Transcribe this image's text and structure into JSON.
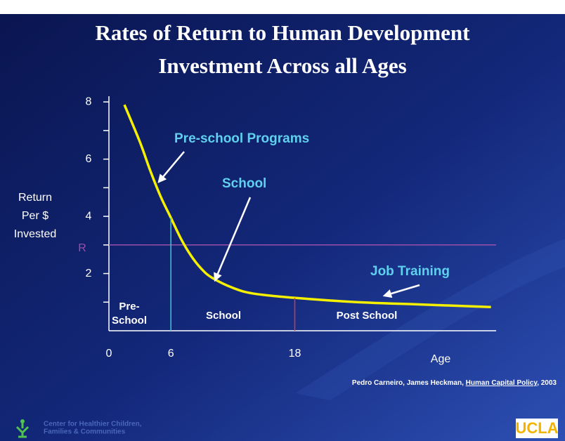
{
  "chart_data": {
    "type": "line",
    "title": [
      "Rates of Return to Human Development",
      "Investment Across all Ages"
    ],
    "ylabel": [
      "Return",
      "Per $",
      "Invested"
    ],
    "xlabel": "Age",
    "x": [
      1.5,
      3,
      4,
      5,
      6,
      7,
      8,
      9,
      10,
      12,
      14,
      18,
      24,
      30,
      37
    ],
    "series": [
      {
        "color": "#f5f000",
        "values": [
          7.9,
          6.6,
          5.6,
          4.7,
          3.95,
          3.2,
          2.6,
          2.15,
          1.85,
          1.5,
          1.3,
          1.15,
          1.0,
          0.92,
          0.83
        ]
      }
    ],
    "xlim": [
      0,
      37.5
    ],
    "ylim": [
      0,
      8.2
    ],
    "xticks": [
      0,
      6,
      18
    ],
    "yticks": [
      2,
      4,
      6,
      8
    ],
    "y_minor_ticks": [
      1,
      3,
      5,
      7
    ],
    "reference_line": {
      "value": 3,
      "label": "R",
      "color": "#9a4fa8"
    },
    "vertical_lines": [
      {
        "x": 6,
        "color": "#3fc9c9"
      },
      {
        "x": 18,
        "color": "#d23b3b"
      }
    ],
    "regions": [
      [
        "Pre-",
        "School"
      ],
      [
        "School"
      ],
      [
        "Post School"
      ]
    ],
    "annotations": [
      "Pre-school Programs",
      "School",
      "Job Training"
    ],
    "citation": [
      "Pedro Carneiro, James Heckman, ",
      "Human Capital Policy",
      ", 2003"
    ],
    "footer": [
      "Center for Healthier Children,",
      "Families & Communities"
    ],
    "logo": "UCLA"
  }
}
